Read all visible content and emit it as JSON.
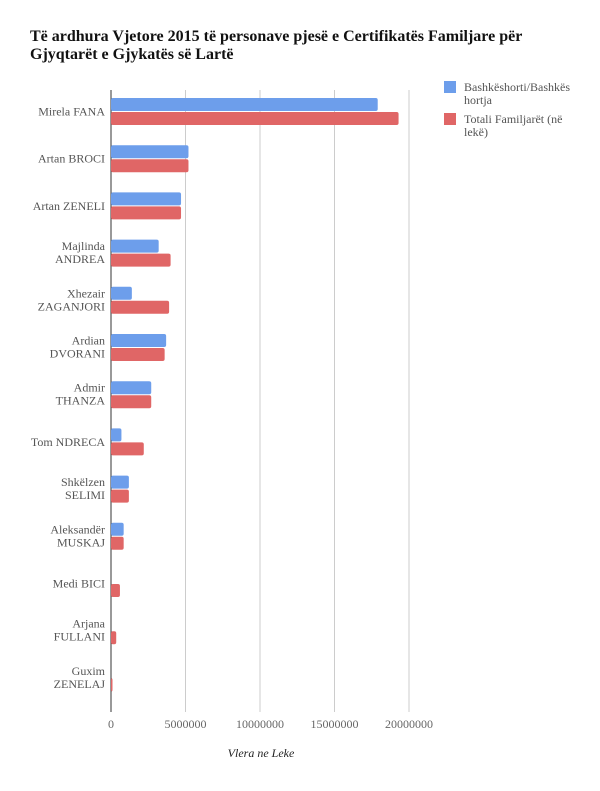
{
  "chart_data": {
    "type": "bar",
    "orientation": "horizontal",
    "title": "Të ardhura Vjetore 2015 të personave pjesë e Certifikatës Familjare  për Gjyqtarët e Gjykatës së Lartë",
    "xlabel": "Vlera ne Leke",
    "ylabel": "",
    "xlim": [
      0,
      22000000
    ],
    "xticks": [
      0,
      5000000,
      10000000,
      15000000,
      20000000
    ],
    "xtick_labels": [
      "0",
      "5000000",
      "10000000",
      "15000000",
      "20000000"
    ],
    "grid": true,
    "legend_position": "top-right",
    "categories": [
      [
        "Mirela FANA"
      ],
      [
        "Artan BROCI"
      ],
      [
        "Artan ZENELI"
      ],
      [
        "Majlinda",
        "ANDREA"
      ],
      [
        "Xhezair",
        "ZAGANJORI"
      ],
      [
        "Ardian",
        "DVORANI"
      ],
      [
        "Admir",
        "THANZA"
      ],
      [
        "Tom NDRECA"
      ],
      [
        "Shkëlzen",
        "SELIMI"
      ],
      [
        "Aleksandër",
        "MUSKAJ"
      ],
      [
        "Medi  BICI"
      ],
      [
        "Arjana",
        "FULLANI"
      ],
      [
        "Guxim",
        "ZENELAJ"
      ]
    ],
    "series": [
      {
        "name": "Bashkëshorti/Bashkëshortja",
        "legend_lines": [
          "Bashkëshorti/Bashkës",
          "hortja"
        ],
        "color": "#6d9eeb",
        "values": [
          17900000,
          5200000,
          4700000,
          3200000,
          1400000,
          3700000,
          2700000,
          700000,
          1200000,
          850000,
          0,
          0,
          0
        ]
      },
      {
        "name": "Totali Familjarët (në lekë)",
        "legend_lines": [
          "Totali Familjarët (në",
          "lekë)"
        ],
        "color": "#e06666",
        "values": [
          19300000,
          5200000,
          4700000,
          4000000,
          3900000,
          3600000,
          2700000,
          2200000,
          1200000,
          850000,
          600000,
          350000,
          100000
        ]
      }
    ]
  }
}
